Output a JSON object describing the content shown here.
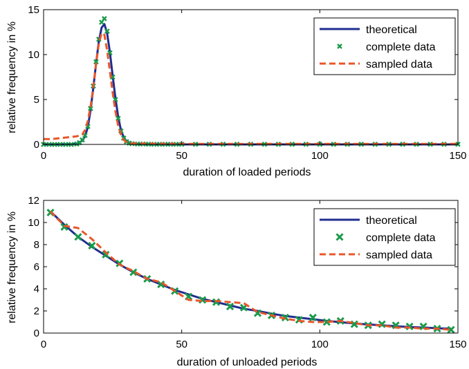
{
  "chart_data": [
    {
      "type": "line",
      "xlabel": "duration of loaded periods",
      "ylabel": "relative frequency in %",
      "xlim": [
        0,
        150
      ],
      "ylim": [
        0,
        15
      ],
      "xticks": [
        "0",
        "50",
        "100",
        "150"
      ],
      "yticks": [
        "0",
        "5",
        "10",
        "15"
      ],
      "grid": false,
      "legend_position": "top-right",
      "series": [
        {
          "name": "theoretical",
          "style": "solid line",
          "color": "#1f2d8f",
          "x": [
            0,
            5,
            10,
            12,
            14,
            15,
            16,
            17,
            18,
            19,
            20,
            21,
            22,
            23,
            24,
            25,
            26,
            27,
            28,
            29,
            30,
            32,
            35,
            40,
            150
          ],
          "y": [
            0,
            0,
            0.02,
            0.1,
            0.4,
            0.9,
            1.9,
            3.8,
            6.3,
            9.0,
            11.5,
            13.0,
            13.4,
            12.4,
            10.3,
            7.7,
            5.2,
            3.1,
            1.6,
            0.8,
            0.35,
            0.08,
            0.02,
            0,
            0
          ]
        },
        {
          "name": "complete data",
          "style": "x markers",
          "color": "#1a9a4a",
          "x": [
            0,
            2,
            4,
            6,
            8,
            10,
            12,
            13,
            14,
            15,
            16,
            17,
            18,
            19,
            20,
            21,
            22,
            23,
            24,
            25,
            26,
            27,
            28,
            29,
            30,
            31,
            32,
            34,
            36,
            38,
            40,
            42,
            44,
            46,
            48,
            50,
            55,
            60,
            65,
            70,
            75,
            80,
            85,
            90,
            95,
            100,
            105,
            110,
            115,
            120,
            125,
            130,
            135,
            140,
            145,
            150
          ],
          "y": [
            0,
            0,
            0,
            0,
            0,
            0,
            0.05,
            0.2,
            0.5,
            1.0,
            2.0,
            4.0,
            6.5,
            9.2,
            11.7,
            13.6,
            14.0,
            12.6,
            10.2,
            7.5,
            5.0,
            2.9,
            1.5,
            0.7,
            0.3,
            0.15,
            0.08,
            0.05,
            0.05,
            0.03,
            0.02,
            0.02,
            0.02,
            0.02,
            0.02,
            0.02,
            0.02,
            0.02,
            0.02,
            0.02,
            0.02,
            0.02,
            0.02,
            0.02,
            0.02,
            0.02,
            0.02,
            0.02,
            0.02,
            0.02,
            0.02,
            0.02,
            0.02,
            0.02,
            0.02,
            0.02
          ]
        },
        {
          "name": "sampled data",
          "style": "dashed line",
          "color": "#e8562a",
          "x": [
            0,
            3,
            6,
            9,
            12,
            14,
            15,
            16,
            17,
            18,
            19,
            20,
            21,
            22,
            23,
            24,
            25,
            26,
            27,
            28,
            29,
            30,
            32,
            35,
            40,
            60,
            150
          ],
          "y": [
            0.6,
            0.6,
            0.7,
            0.8,
            0.9,
            1.1,
            1.6,
            2.6,
            4.2,
            6.4,
            9.0,
            11.2,
            12.4,
            12.2,
            10.5,
            8.2,
            5.8,
            3.7,
            2.1,
            1.1,
            0.5,
            0.25,
            0.12,
            0.1,
            0.08,
            0.05,
            0.05
          ]
        }
      ]
    },
    {
      "type": "line",
      "xlabel": "duration of unloaded periods",
      "ylabel": "relative frequency in %",
      "xlim": [
        0,
        150
      ],
      "ylim": [
        0,
        12
      ],
      "xticks": [
        "0",
        "50",
        "100",
        "150"
      ],
      "yticks": [
        "0",
        "2",
        "4",
        "6",
        "8",
        "10",
        "12"
      ],
      "grid": false,
      "legend_position": "top-right",
      "series": [
        {
          "name": "theoretical",
          "style": "solid line",
          "color": "#1f2d8f",
          "x": [
            2.5,
            7.5,
            12.5,
            17.5,
            22.5,
            27.5,
            32.5,
            37.5,
            42.5,
            47.5,
            52.5,
            57.5,
            62.5,
            67.5,
            72.5,
            77.5,
            82.5,
            87.5,
            92.5,
            97.5,
            102.5,
            107.5,
            112.5,
            117.5,
            122.5,
            127.5,
            132.5,
            137.5,
            142.5,
            147.5
          ],
          "y": [
            11.0,
            9.8,
            8.7,
            7.8,
            7.0,
            6.2,
            5.5,
            4.9,
            4.4,
            3.9,
            3.5,
            3.1,
            2.8,
            2.5,
            2.2,
            2.0,
            1.75,
            1.55,
            1.4,
            1.25,
            1.1,
            0.98,
            0.87,
            0.78,
            0.7,
            0.62,
            0.55,
            0.5,
            0.44,
            0.39
          ]
        },
        {
          "name": "complete data",
          "style": "x markers",
          "color": "#1a9a4a",
          "x": [
            2.5,
            7.5,
            12.5,
            17.5,
            22.5,
            27.5,
            32.5,
            37.5,
            42.5,
            47.5,
            52.5,
            57.5,
            62.5,
            67.5,
            72.5,
            77.5,
            82.5,
            87.5,
            92.5,
            97.5,
            102.5,
            107.5,
            112.5,
            117.5,
            122.5,
            127.5,
            132.5,
            137.5,
            142.5,
            147.5
          ],
          "y": [
            10.9,
            9.6,
            8.7,
            7.9,
            7.1,
            6.3,
            5.5,
            4.9,
            4.4,
            3.8,
            3.3,
            3.0,
            2.8,
            2.4,
            2.3,
            1.8,
            1.6,
            1.4,
            1.2,
            1.4,
            1.0,
            1.1,
            0.8,
            0.7,
            0.8,
            0.7,
            0.6,
            0.6,
            0.4,
            0.3
          ]
        },
        {
          "name": "sampled data",
          "style": "dashed line",
          "color": "#e8562a",
          "x": [
            2.5,
            7.5,
            12.5,
            17.5,
            22.5,
            27.5,
            32.5,
            37.5,
            42.5,
            47.5,
            52.5,
            57.5,
            62.5,
            67.5,
            72.5,
            77.5,
            82.5,
            87.5,
            92.5,
            97.5,
            102.5,
            107.5,
            112.5,
            117.5,
            122.5,
            127.5,
            132.5,
            137.5,
            142.5,
            147.5
          ],
          "y": [
            11.0,
            9.7,
            9.5,
            8.5,
            7.3,
            6.2,
            5.6,
            4.9,
            4.6,
            3.8,
            3.0,
            2.9,
            2.9,
            2.8,
            2.7,
            1.9,
            1.6,
            1.3,
            1.1,
            1.0,
            1.0,
            1.1,
            0.9,
            0.7,
            0.7,
            0.5,
            0.5,
            0.4,
            0.4,
            0.3
          ]
        }
      ]
    }
  ]
}
